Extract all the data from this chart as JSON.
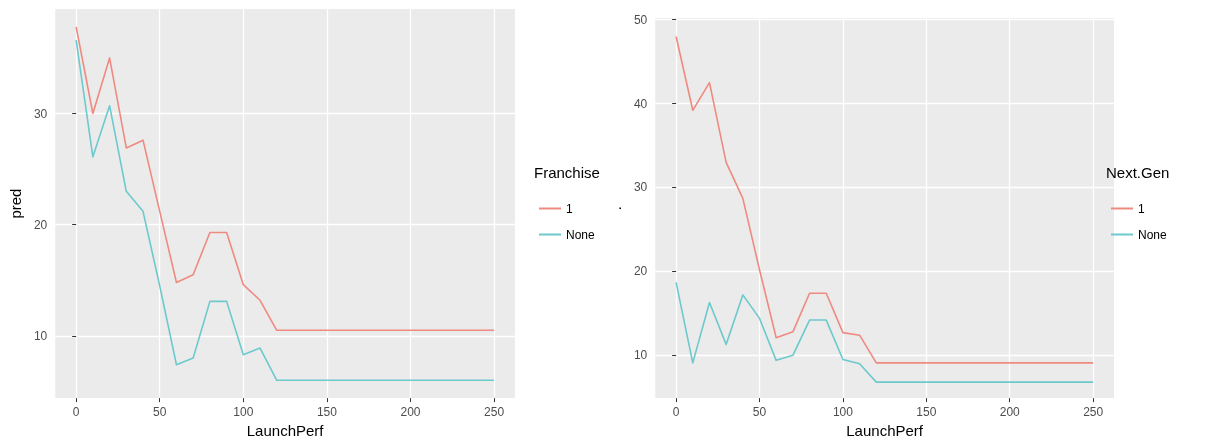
{
  "chart_data": [
    {
      "type": "line",
      "xlabel": "LaunchPerf",
      "ylabel": "pred",
      "legend_title": "Franchise",
      "x": [
        0,
        10,
        20,
        30,
        40,
        50,
        60,
        70,
        80,
        90,
        100,
        110,
        120,
        250
      ],
      "xlim": [
        -12.5,
        262.5
      ],
      "xticks": [
        0,
        50,
        100,
        150,
        200,
        250
      ],
      "ylim": [
        4.4,
        39.4
      ],
      "yticks": [
        10,
        20,
        30
      ],
      "grid": true,
      "legend": "right",
      "marker": "none",
      "series": [
        {
          "name": "1",
          "color": "#ef8a80",
          "values": [
            37.8,
            30.0,
            35.0,
            26.9,
            27.6,
            21.2,
            14.8,
            15.5,
            19.3,
            19.3,
            14.6,
            13.2,
            10.5,
            10.5
          ]
        },
        {
          "name": "None",
          "color": "#6cc9cc",
          "values": [
            36.6,
            26.1,
            30.7,
            23.0,
            21.2,
            14.5,
            7.4,
            8.0,
            13.1,
            13.1,
            8.3,
            8.9,
            6.0,
            6.0
          ]
        }
      ]
    },
    {
      "type": "line",
      "xlabel": "LaunchPerf",
      "ylabel": ".",
      "legend_title": "Next.Gen",
      "x": [
        0,
        10,
        20,
        30,
        40,
        50,
        60,
        70,
        80,
        90,
        100,
        110,
        120,
        250
      ],
      "xlim": [
        -12.5,
        262.5
      ],
      "xticks": [
        0,
        50,
        100,
        150,
        200,
        250
      ],
      "ylim": [
        4.9,
        50.2
      ],
      "yticks": [
        10,
        20,
        30,
        40,
        50
      ],
      "grid": true,
      "legend": "right",
      "marker": "none",
      "series": [
        {
          "name": "1",
          "color": "#ef8a80",
          "values": [
            48.0,
            39.2,
            42.5,
            33.0,
            28.7,
            20.2,
            12.1,
            12.8,
            17.4,
            17.4,
            12.7,
            12.4,
            9.1,
            9.1
          ]
        },
        {
          "name": "None",
          "color": "#6cc9cc",
          "values": [
            18.7,
            9.1,
            16.3,
            11.3,
            17.2,
            14.4,
            9.4,
            10.0,
            14.2,
            14.2,
            9.5,
            9.0,
            6.8,
            6.8
          ]
        }
      ]
    }
  ]
}
